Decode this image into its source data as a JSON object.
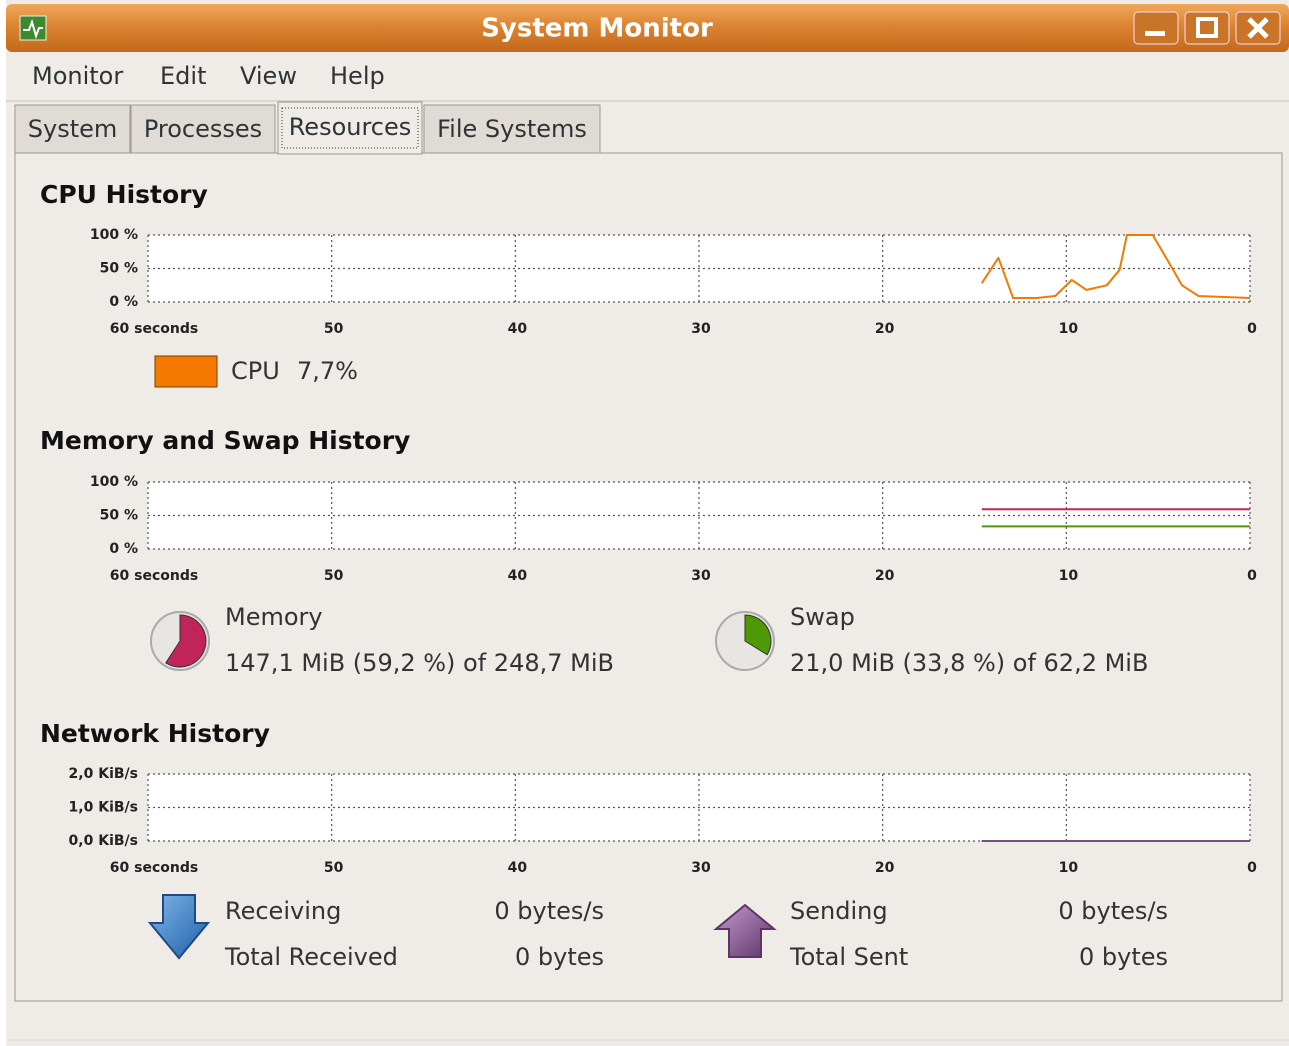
{
  "window": {
    "title": "System Monitor"
  },
  "menu": [
    "Monitor",
    "Edit",
    "View",
    "Help"
  ],
  "tabs": [
    "System",
    "Processes",
    "Resources",
    "File Systems"
  ],
  "cpu": {
    "title": "CPU History",
    "chart": {
      "type": "line",
      "xlim": [
        60,
        0
      ],
      "ylim": [
        0,
        100
      ],
      "xticks": [
        {
          "value": 60,
          "label": "60 seconds"
        },
        50,
        40,
        30,
        20,
        10,
        0
      ],
      "yticks": [
        {
          "value": 0,
          "label": "0 %"
        },
        {
          "value": 50,
          "label": "50 %"
        },
        {
          "value": 100,
          "label": "100 %"
        }
      ],
      "grid": true,
      "series": [
        {
          "name": "CPU",
          "color": "#f57900",
          "x": [
            14.6,
            13.7,
            12.9,
            11.6,
            10.6,
            9.7,
            8.9,
            7.8,
            7.1,
            6.7,
            5.3,
            4.5,
            3.7,
            2.8,
            0
          ],
          "values": [
            28,
            66,
            6,
            6,
            9,
            33,
            18,
            25,
            48,
            100,
            100,
            63,
            25,
            9,
            6
          ]
        }
      ]
    },
    "current_label": "7,7%"
  },
  "memory": {
    "title": "Memory and Swap History",
    "chart": {
      "type": "line",
      "xlim": [
        60,
        0
      ],
      "ylim": [
        0,
        100
      ],
      "xticks": [
        {
          "value": 60,
          "label": "60 seconds"
        },
        50,
        40,
        30,
        20,
        10,
        0
      ],
      "yticks": [
        {
          "value": 0,
          "label": "0 %"
        },
        {
          "value": 50,
          "label": "50 %"
        },
        {
          "value": 100,
          "label": "100 %"
        }
      ],
      "grid": true,
      "series": [
        {
          "name": "Memory",
          "color": "#c0245a",
          "x": [
            14.6,
            0
          ],
          "values": [
            59.2,
            59.2
          ]
        },
        {
          "name": "Swap",
          "color": "#4e9a06",
          "x": [
            14.6,
            0
          ],
          "values": [
            33.8,
            33.8
          ]
        }
      ]
    },
    "info": [
      "147,1 MiB (59,2 %) of 248,7 MiB",
      "21,0 MiB (33,8 %) of 62,2 MiB"
    ],
    "percent": [
      59.2,
      33.8
    ]
  },
  "network": {
    "title": "Network History",
    "chart": {
      "type": "line",
      "xlim": [
        60,
        0
      ],
      "ylim": [
        0,
        2
      ],
      "xticks": [
        {
          "value": 60,
          "label": "60 seconds"
        },
        50,
        40,
        30,
        20,
        10,
        0
      ],
      "yticks": [
        {
          "value": 0,
          "label": "0,0 KiB/s"
        },
        {
          "value": 1,
          "label": "1,0 KiB/s"
        },
        {
          "value": 2,
          "label": "2,0 KiB/s"
        }
      ],
      "grid": true,
      "series": [
        {
          "name": "Receiving",
          "color": "#3465a4",
          "x": [
            14.6,
            0
          ],
          "values": [
            0,
            0
          ]
        },
        {
          "name": "Sending",
          "color": "#75507b",
          "x": [
            14.6,
            0
          ],
          "values": [
            0,
            0
          ]
        }
      ]
    },
    "rates": [
      "0 bytes/s",
      "0 bytes/s"
    ],
    "total_labels": [
      "Total Received",
      "Total Sent"
    ],
    "totals": [
      "0 bytes",
      "0 bytes"
    ]
  }
}
